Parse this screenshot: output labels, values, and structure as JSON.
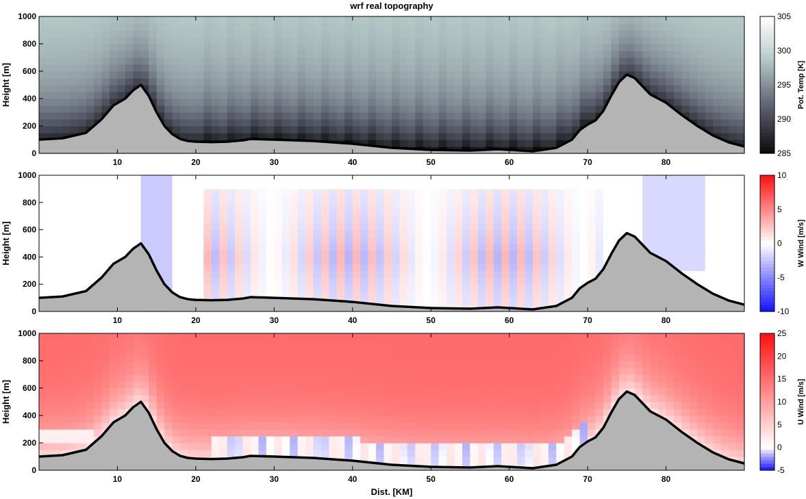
{
  "figure": {
    "title": "wrf real topography",
    "xlabel": "Dist. [KM]"
  },
  "colors": {
    "terrain_fill": "#b4b4b4",
    "terrain_line": "#000000",
    "temp_low": "#0a0a0d",
    "temp_mid": "#5e6270",
    "temp_high": "#b8cdcc",
    "temp_top": "#ffffff",
    "wind_neg": "#1010ff",
    "wind_zero": "#ffffff",
    "wind_pos": "#ff1010"
  },
  "chart_data": [
    {
      "type": "heatmap",
      "name": "potential-temperature",
      "title": "wrf real topography",
      "ylabel": "Height [m]",
      "xlim": [
        0,
        90
      ],
      "ylim": [
        0,
        1000
      ],
      "xticks": [
        10,
        20,
        30,
        40,
        50,
        60,
        70,
        80
      ],
      "yticks": [
        0,
        200,
        400,
        600,
        800,
        1000
      ],
      "colorbar": {
        "label": "Pot. Temp [K]",
        "min": 285,
        "max": 305,
        "ticks": [
          285,
          290,
          295,
          300,
          305
        ]
      },
      "terrain": {
        "x": [
          0,
          3,
          6,
          8,
          9.5,
          11,
          12,
          13,
          14,
          15,
          16,
          17,
          18,
          19,
          20,
          22,
          24,
          26,
          27,
          30,
          35,
          40,
          45,
          50,
          55,
          58.5,
          63,
          66,
          68,
          69,
          70,
          71,
          72,
          73,
          74,
          75,
          76,
          77,
          78,
          80,
          82,
          84,
          86,
          88,
          90
        ],
        "y": [
          100,
          110,
          150,
          250,
          350,
          400,
          460,
          500,
          420,
          300,
          200,
          140,
          105,
          90,
          85,
          82,
          85,
          95,
          105,
          100,
          90,
          70,
          40,
          25,
          20,
          30,
          15,
          40,
          100,
          170,
          210,
          240,
          310,
          420,
          520,
          575,
          550,
          490,
          430,
          370,
          280,
          200,
          130,
          80,
          50
        ]
      }
    },
    {
      "type": "heatmap",
      "name": "vertical-wind",
      "ylabel": "Height [m]",
      "xlim": [
        0,
        90
      ],
      "ylim": [
        0,
        1000
      ],
      "xticks": [
        10,
        20,
        30,
        40,
        50,
        60,
        70,
        80
      ],
      "yticks": [
        0,
        200,
        400,
        600,
        800,
        1000
      ],
      "colorbar": {
        "label": "W Wind [m/s]",
        "min": -10,
        "max": 10,
        "ticks": [
          -10,
          -5,
          0,
          5,
          10
        ]
      }
    },
    {
      "type": "heatmap",
      "name": "horizontal-wind",
      "ylabel": "Height [m]",
      "xlabel": "Dist. [KM]",
      "xlim": [
        0,
        90
      ],
      "ylim": [
        0,
        1000
      ],
      "xticks": [
        10,
        20,
        30,
        40,
        50,
        60,
        70,
        80
      ],
      "yticks": [
        0,
        200,
        400,
        600,
        800,
        1000
      ],
      "colorbar": {
        "label": "U Wind [m/s]",
        "min": -5,
        "max": 25,
        "ticks": [
          -5,
          0,
          5,
          10,
          15,
          20,
          25
        ]
      }
    }
  ]
}
